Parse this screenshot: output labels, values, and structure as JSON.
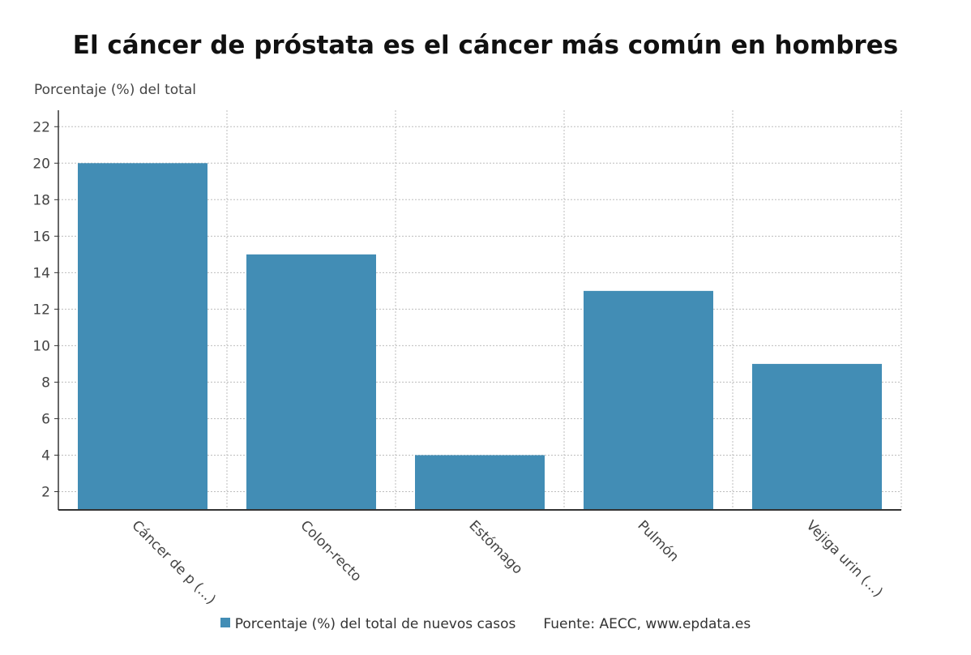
{
  "title": "El cáncer de próstata es el cáncer más común en hombres",
  "chart_data": {
    "type": "bar",
    "ylabel": "Porcentaje (%) del total",
    "xlabel": "",
    "categories": [
      "Cáncer de p (...)",
      "Colon-recto",
      "Estómago",
      "Pulmón",
      "Vejiga urin (...)"
    ],
    "series": [
      {
        "name": "Porcentaje (%) del total de nuevos casos",
        "values": [
          20,
          15,
          4,
          13,
          9
        ]
      }
    ],
    "ylim": [
      1,
      22.9
    ],
    "yticks": [
      2,
      4,
      6,
      8,
      10,
      12,
      14,
      16,
      18,
      20,
      22
    ],
    "grid": true,
    "legend_position": "bottom",
    "bar_color": "#428db5"
  },
  "legend": {
    "label": "Porcentaje (%) del total de nuevos casos",
    "source": "Fuente: AECC, www.epdata.es"
  }
}
